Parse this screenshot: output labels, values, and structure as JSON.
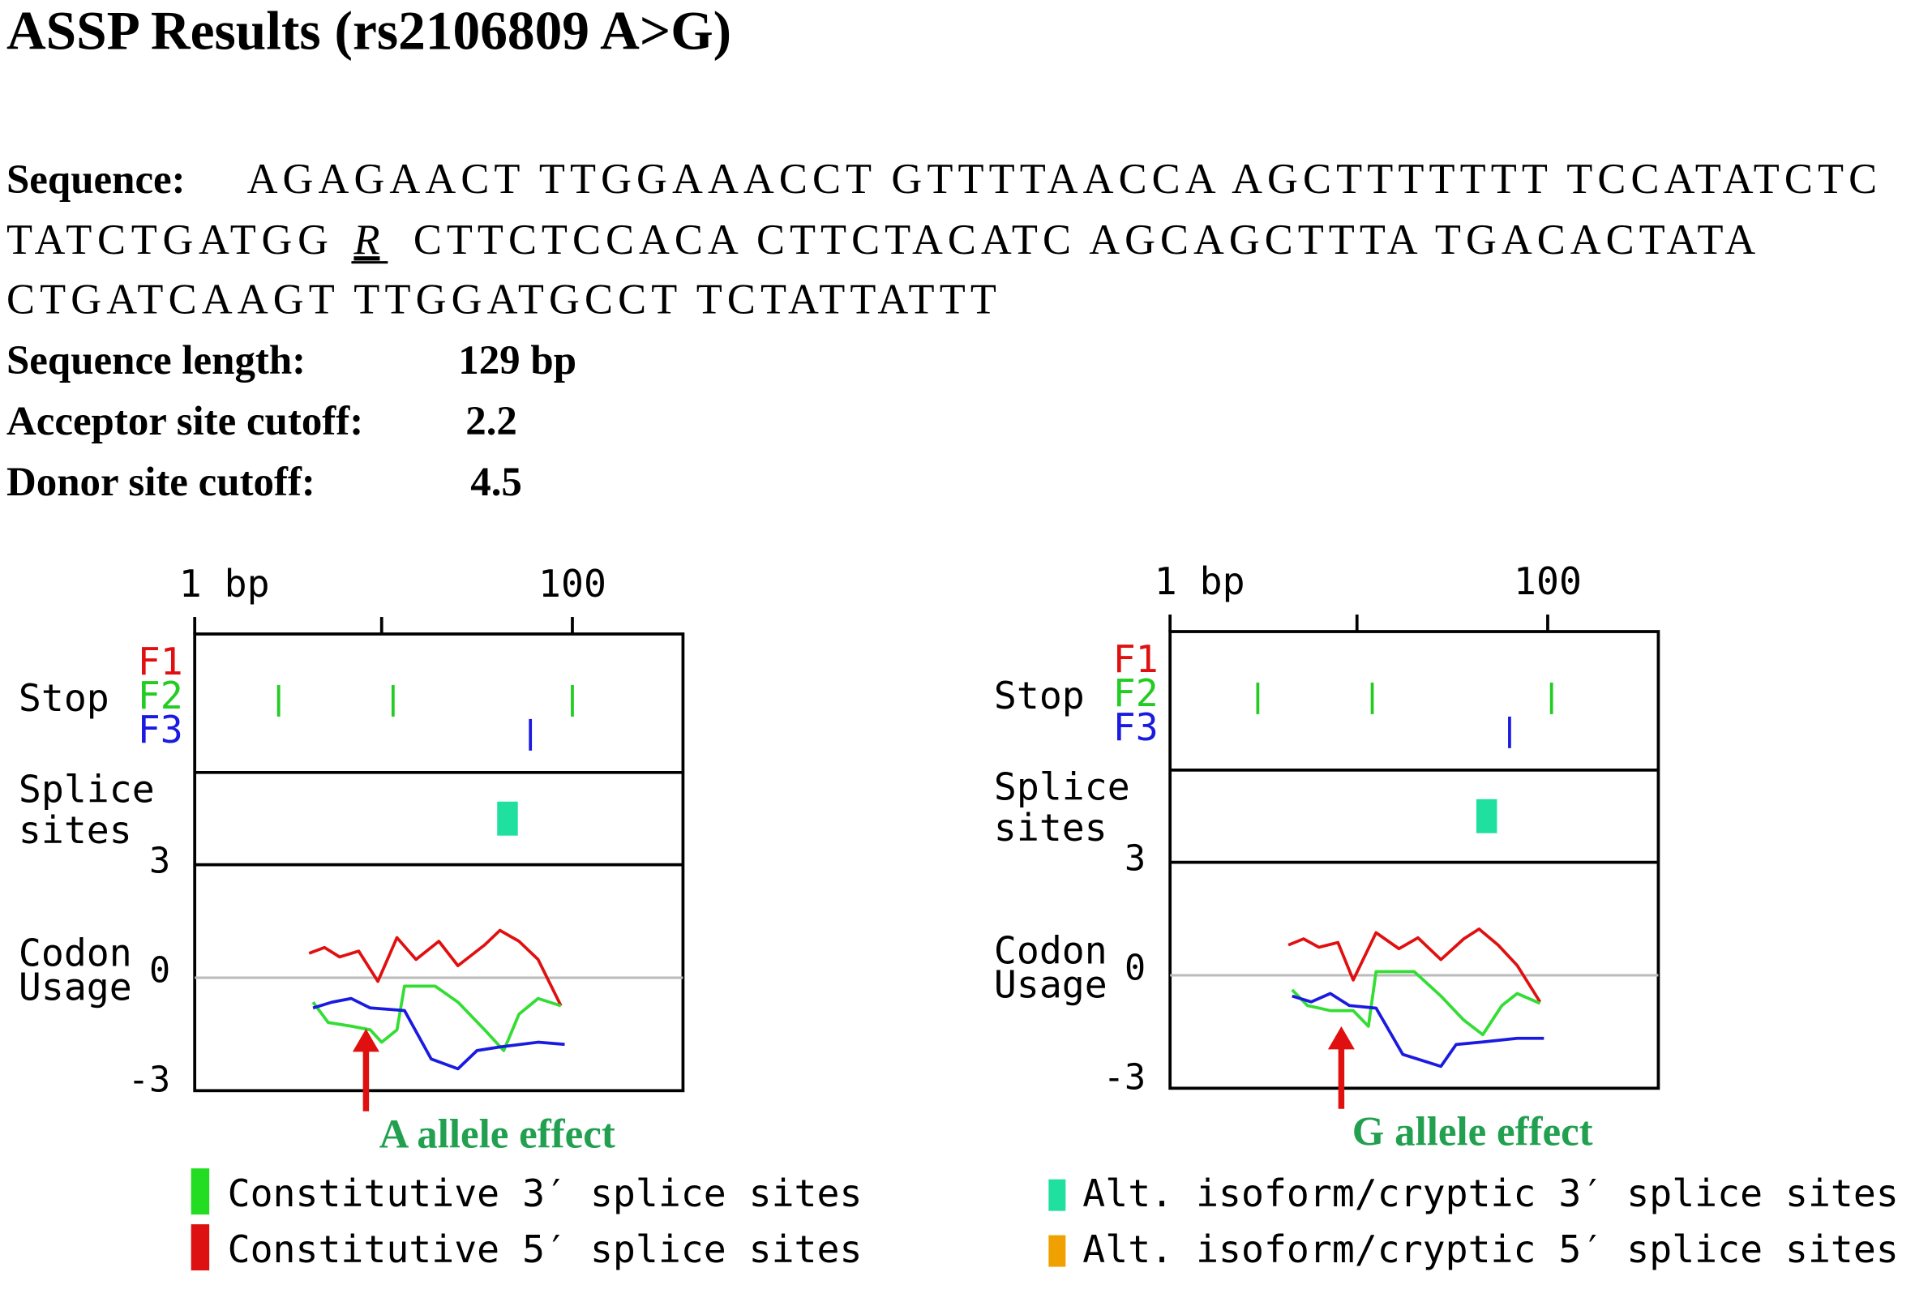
{
  "title": "ASSP Results (rs2106809 A>G)",
  "sequence": {
    "label": "Sequence:",
    "line1": "AGAGAACT TTGGAAACCT GTTTTAACCA AGCTTTTTTT TCCATATCTC",
    "line2_before": "TATCTGATGG",
    "variant": "R",
    "line2_after": "CTTCTCCACA CTTCTACATC AGCAGCTTTA TGACACTATA",
    "line3": "CTGATCAAGT TTGGATGCCT TCTATTATTT"
  },
  "fields": [
    {
      "label": "Sequence length:",
      "value": "129 bp"
    },
    {
      "label": "Acceptor site cutoff:",
      "value": "2.2"
    },
    {
      "label": "Donor site cutoff:",
      "value": "4.5"
    }
  ],
  "panels": [
    {
      "xlim": [
        1,
        129
      ],
      "xticks": [
        {
          "value": 1,
          "label": "1 bp"
        },
        {
          "value": 50,
          "label": null
        },
        {
          "value": 100,
          "label": "100"
        }
      ],
      "ylim": [
        -3.1,
        3.1
      ],
      "yticks": [
        3,
        0,
        -3
      ],
      "zero_line": true,
      "stop_label": "Stop",
      "splice_label": [
        "Splice",
        "sites"
      ],
      "codon_label": [
        "Codon",
        "Usage"
      ],
      "frames": [
        {
          "name": "F1",
          "color": "#e01010",
          "positions": []
        },
        {
          "name": "F2",
          "color": "#22cc22",
          "positions": [
            23,
            53,
            100
          ]
        },
        {
          "name": "F3",
          "color": "#1a1ae0",
          "positions": [
            89
          ]
        }
      ],
      "splice_sites": [
        {
          "position": 83,
          "color": "#20e0a0"
        }
      ],
      "series": [
        {
          "color": "#e01010",
          "x": [
            31,
            35,
            39,
            44,
            49,
            54,
            59,
            65,
            70,
            77,
            81,
            86,
            91,
            97
          ],
          "values": [
            0.67,
            0.83,
            0.57,
            0.73,
            -0.1,
            1.1,
            0.5,
            1.0,
            0.33,
            0.9,
            1.3,
            1.0,
            0.5,
            -0.77
          ]
        },
        {
          "color": "#33dd33",
          "x": [
            32,
            36,
            42,
            47,
            50,
            54,
            56,
            64,
            70,
            77,
            82,
            86,
            91,
            97
          ],
          "values": [
            -0.67,
            -1.23,
            -1.33,
            -1.43,
            -1.77,
            -1.43,
            -0.23,
            -0.23,
            -0.67,
            -1.43,
            -2.0,
            -1.0,
            -0.57,
            -0.77
          ]
        },
        {
          "color": "#1a1ae0",
          "x": [
            32,
            37,
            42,
            47,
            56,
            63,
            70,
            75,
            81,
            91,
            98
          ],
          "values": [
            -0.83,
            -0.67,
            -0.57,
            -0.83,
            -0.9,
            -2.23,
            -2.5,
            -2.0,
            -1.9,
            -1.77,
            -1.83
          ]
        }
      ],
      "annotation": "A allele effect",
      "annotation_color": "#22a050"
    },
    {
      "xlim": [
        1,
        129
      ],
      "xticks": [
        {
          "value": 1,
          "label": "1 bp"
        },
        {
          "value": 50,
          "label": null
        },
        {
          "value": 100,
          "label": "100"
        }
      ],
      "ylim": [
        -3.1,
        3.1
      ],
      "yticks": [
        3,
        0,
        -3
      ],
      "zero_line": true,
      "stop_label": "Stop",
      "splice_label": [
        "Splice",
        "sites"
      ],
      "codon_label": [
        "Codon",
        "Usage"
      ],
      "frames": [
        {
          "name": "F1",
          "color": "#e01010",
          "positions": []
        },
        {
          "name": "F2",
          "color": "#22cc22",
          "positions": [
            24,
            54,
            101
          ]
        },
        {
          "name": "F3",
          "color": "#1a1ae0",
          "positions": [
            90
          ]
        }
      ],
      "splice_sites": [
        {
          "position": 84,
          "color": "#20e0a0"
        }
      ],
      "series": [
        {
          "color": "#e01010",
          "x": [
            32,
            36,
            40,
            45,
            49,
            55,
            61,
            66,
            72,
            78,
            82,
            87,
            92,
            98
          ],
          "values": [
            0.83,
            1.0,
            0.77,
            0.9,
            -0.13,
            1.17,
            0.73,
            1.03,
            0.43,
            1.0,
            1.27,
            0.83,
            0.27,
            -0.73
          ]
        },
        {
          "color": "#33dd33",
          "x": [
            33,
            37,
            43,
            49,
            53,
            55,
            65,
            72,
            78,
            83,
            88,
            92,
            98
          ],
          "values": [
            -0.4,
            -0.83,
            -0.97,
            -0.97,
            -1.4,
            0.1,
            0.1,
            -0.57,
            -1.23,
            -1.63,
            -0.83,
            -0.5,
            -0.77
          ]
        },
        {
          "color": "#1a1ae0",
          "x": [
            33,
            38,
            43,
            48,
            55,
            62,
            72,
            76,
            83,
            92,
            99
          ],
          "values": [
            -0.57,
            -0.73,
            -0.5,
            -0.83,
            -0.9,
            -2.17,
            -2.5,
            -1.9,
            -1.83,
            -1.73,
            -1.73
          ]
        }
      ],
      "annotation": "G allele effect",
      "annotation_color": "#22a050"
    }
  ],
  "legend": [
    {
      "label": "Constitutive 3′ splice sites",
      "color": "#22dd22"
    },
    {
      "label": "Constitutive 5′ splice sites",
      "color": "#dd1111"
    },
    {
      "label": "Alt. isoform/cryptic 3′ splice sites",
      "color": "#20e0a0"
    },
    {
      "label": "Alt. isoform/cryptic 5′ splice sites",
      "color": "#f0a000"
    }
  ]
}
